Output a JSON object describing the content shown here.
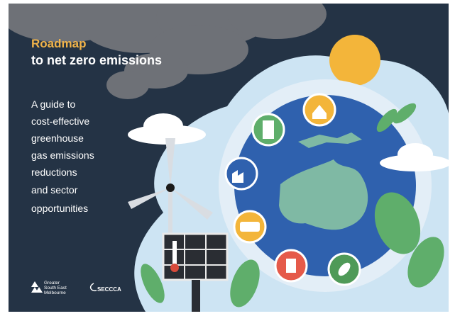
{
  "cover": {
    "title": "Roadmap",
    "subtitle": "to net zero emissions",
    "description": [
      "A guide to",
      "cost-effective",
      "greenhouse",
      "gas emissions",
      "reductions",
      "and sector",
      "opportunities"
    ],
    "logos": [
      {
        "lines": [
          "Greater",
          "South East",
          "Melbourne"
        ]
      },
      {
        "name": "SECCCA"
      }
    ]
  }
}
